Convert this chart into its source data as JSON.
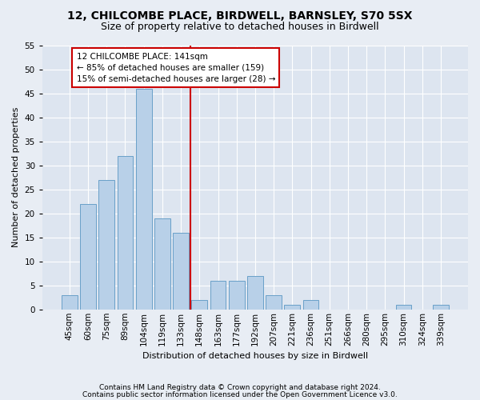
{
  "title1": "12, CHILCOMBE PLACE, BIRDWELL, BARNSLEY, S70 5SX",
  "title2": "Size of property relative to detached houses in Birdwell",
  "xlabel": "Distribution of detached houses by size in Birdwell",
  "ylabel": "Number of detached properties",
  "categories": [
    "45sqm",
    "60sqm",
    "75sqm",
    "89sqm",
    "104sqm",
    "119sqm",
    "133sqm",
    "148sqm",
    "163sqm",
    "177sqm",
    "192sqm",
    "207sqm",
    "221sqm",
    "236sqm",
    "251sqm",
    "266sqm",
    "280sqm",
    "295sqm",
    "310sqm",
    "324sqm",
    "339sqm"
  ],
  "values": [
    3,
    22,
    27,
    32,
    46,
    19,
    16,
    2,
    6,
    6,
    7,
    3,
    1,
    2,
    0,
    0,
    0,
    0,
    1,
    0,
    1
  ],
  "bar_color": "#b8d0e8",
  "bar_edge_color": "#6aa0c8",
  "vline_color": "#cc0000",
  "vline_pos": 6.5,
  "annotation_line1": "12 CHILCOMBE PLACE: 141sqm",
  "annotation_line2": "← 85% of detached houses are smaller (159)",
  "annotation_line3": "15% of semi-detached houses are larger (28) →",
  "annotation_box_color": "#cc0000",
  "ylim": [
    0,
    55
  ],
  "yticks": [
    0,
    5,
    10,
    15,
    20,
    25,
    30,
    35,
    40,
    45,
    50,
    55
  ],
  "footer1": "Contains HM Land Registry data © Crown copyright and database right 2024.",
  "footer2": "Contains public sector information licensed under the Open Government Licence v3.0.",
  "bg_color": "#e8edf4",
  "plot_bg_color": "#dde5f0",
  "title1_fontsize": 10,
  "title2_fontsize": 9,
  "xlabel_fontsize": 8,
  "ylabel_fontsize": 8,
  "tick_fontsize": 7.5,
  "footer_fontsize": 6.5
}
